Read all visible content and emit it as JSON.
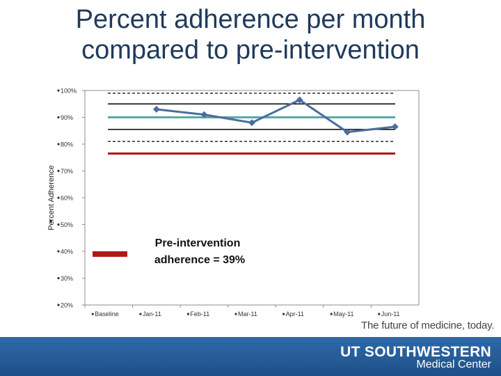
{
  "slide": {
    "title_line1": "Percent adherence per month",
    "title_line2": "compared to pre-intervention",
    "tagline": "The future of medicine, today.",
    "logo_main": "UT SOUTHWESTERN",
    "logo_sub": "Medical Center"
  },
  "chart_data": {
    "type": "line",
    "title": "",
    "ylabel": "Percent Adherence",
    "xlabel": "",
    "categories": [
      "Baseline",
      "Jan-11",
      "Feb-11",
      "Mar-11",
      "Apr-11",
      "May-11",
      "Jun-11"
    ],
    "ylim": [
      20,
      100
    ],
    "yticks": [
      "100%",
      "90%",
      "80%",
      "70%",
      "60%",
      "50%",
      "40%",
      "30%",
      "20%"
    ],
    "series": [
      {
        "values": [
          null,
          93,
          91,
          88,
          96.5,
          84.5,
          86.5
        ],
        "color": "#4a6d9c"
      }
    ],
    "reference_lines": [
      {
        "value": 99,
        "style": "dashed",
        "color": "#000000"
      },
      {
        "value": 95,
        "style": "solid",
        "color": "#000000"
      },
      {
        "value": 90,
        "style": "solid",
        "color": "#5aaaa6"
      },
      {
        "value": 85.5,
        "style": "solid",
        "color": "#000000"
      },
      {
        "value": 81,
        "style": "dashed",
        "color": "#000000"
      },
      {
        "value": 76.5,
        "style": "solid",
        "color": "#b01818"
      }
    ],
    "pre_intervention": {
      "value": 39,
      "color": "#b01818",
      "label_line1": "Pre-intervention",
      "label_line2": "adherence = 39%"
    },
    "grid": false,
    "colors": {
      "title": "#1f3a5a",
      "footer": "#24568f"
    }
  }
}
